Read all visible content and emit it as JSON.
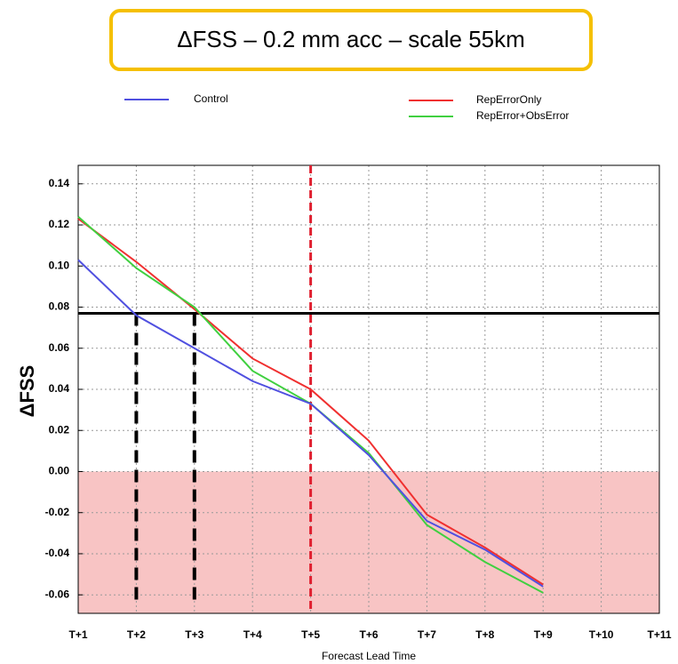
{
  "chart_data": {
    "type": "line",
    "title": "ΔFSS – 0.2 mm acc – scale 55km",
    "x_label": "Forecast Lead Time",
    "y_label": "ΔFSS",
    "categories": [
      "T+1",
      "T+2",
      "T+3",
      "T+4",
      "T+5",
      "T+6",
      "T+7",
      "T+8",
      "T+9",
      "T+10",
      "T+11"
    ],
    "series": [
      {
        "name": "Control",
        "color": "#5050e0",
        "values": [
          0.103,
          0.076,
          0.06,
          0.044,
          0.033,
          0.008,
          -0.024,
          -0.038,
          -0.056,
          null,
          null
        ]
      },
      {
        "name": "RepErrorOnly",
        "color": "#f03030",
        "values": [
          0.123,
          0.102,
          0.079,
          0.055,
          0.04,
          0.015,
          -0.021,
          -0.037,
          -0.055,
          null,
          null
        ]
      },
      {
        "name": "RepError+ObsError",
        "color": "#40d040",
        "values": [
          0.124,
          0.099,
          0.08,
          0.049,
          0.033,
          0.009,
          -0.026,
          -0.044,
          -0.059,
          null,
          null
        ]
      }
    ],
    "ylim": [
      -0.069,
      0.149
    ],
    "yticks": [
      {
        "value": -0.06,
        "label": "-0.06"
      },
      {
        "value": -0.04,
        "label": "-0.04"
      },
      {
        "value": -0.02,
        "label": "-0.02"
      },
      {
        "value": 0,
        "label": "0.00"
      },
      {
        "value": 0.02,
        "label": "0.02"
      },
      {
        "value": 0.04,
        "label": "0.04"
      },
      {
        "value": 0.06,
        "label": "0.06"
      },
      {
        "value": 0.08,
        "label": "0.08"
      },
      {
        "value": 0.1,
        "label": "0.10"
      },
      {
        "value": 0.12,
        "label": "0.12"
      },
      {
        "value": 0.14,
        "label": "0.14"
      }
    ],
    "grid": true,
    "threshold_line": 0.077,
    "drop_lines_at": [
      "T+2",
      "T+3"
    ],
    "highlight_at": "T+5",
    "negative_fill": "#f8c4c4"
  }
}
